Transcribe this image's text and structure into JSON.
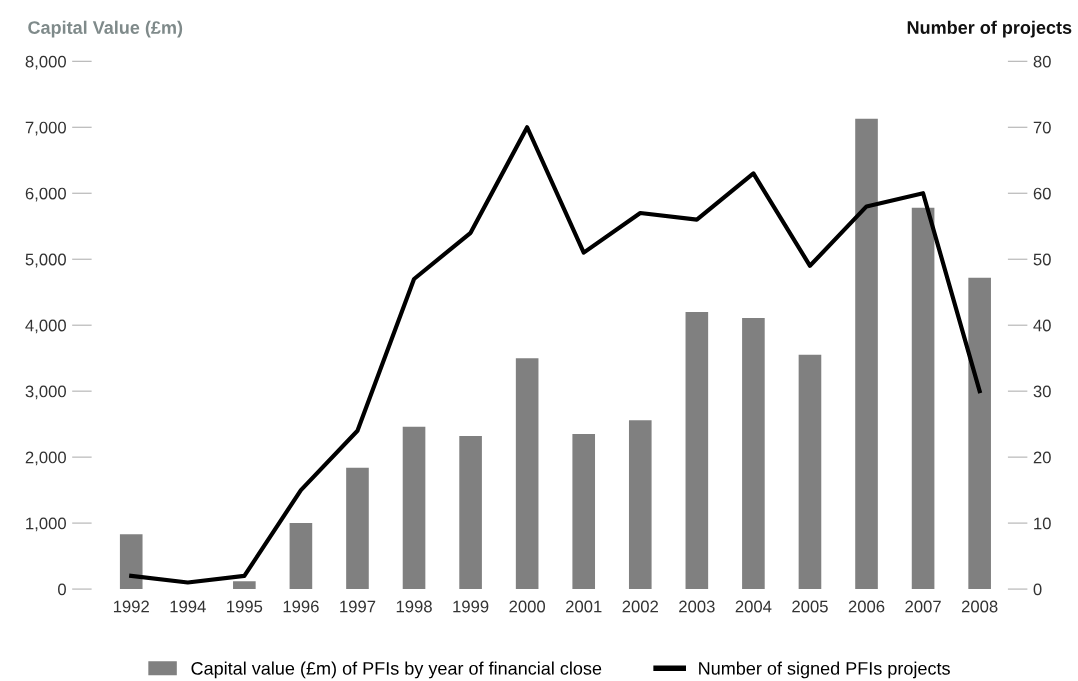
{
  "chart_data": {
    "type": "bar",
    "ylabel": "Capital Value (£m)",
    "y2label": "Number of projects",
    "categories": [
      "1992",
      "1994",
      "1995",
      "1996",
      "1997",
      "1998",
      "1999",
      "2000",
      "2001",
      "2002",
      "2003",
      "2004",
      "2005",
      "2006",
      "2007",
      "2008"
    ],
    "series": [
      {
        "name": "Capital value (£m) of PFIs by year of financial close",
        "color": "#808080",
        "values": [
          830,
          0,
          120,
          1000,
          1840,
          2460,
          2320,
          3500,
          2350,
          2560,
          4200,
          4110,
          3550,
          7130,
          5780,
          4720
        ]
      },
      {
        "name": "Number of signed PFIs projects",
        "type": "line",
        "axis": "y2",
        "color": "#000000",
        "values": [
          2,
          1,
          2,
          15,
          24,
          47,
          54,
          70,
          51,
          57,
          56,
          63,
          49,
          58,
          60,
          30
        ]
      }
    ],
    "ylim": [
      0,
      8000
    ],
    "yticks": [
      {
        "value": 0,
        "label": "0"
      },
      {
        "value": 1000,
        "label": "1,000"
      },
      {
        "value": 2000,
        "label": "2,000"
      },
      {
        "value": 3000,
        "label": "3,000"
      },
      {
        "value": 4000,
        "label": "4,000"
      },
      {
        "value": 5000,
        "label": "5,000"
      },
      {
        "value": 6000,
        "label": "6,000"
      },
      {
        "value": 7000,
        "label": "7,000"
      },
      {
        "value": 8000,
        "label": "8,000"
      }
    ],
    "y2lim": [
      0,
      80
    ],
    "y2ticks": [
      0,
      10,
      20,
      30,
      40,
      50,
      60,
      70,
      80
    ],
    "legend": "bottom",
    "grid": false,
    "marker": "none",
    "line_style": "solid"
  }
}
